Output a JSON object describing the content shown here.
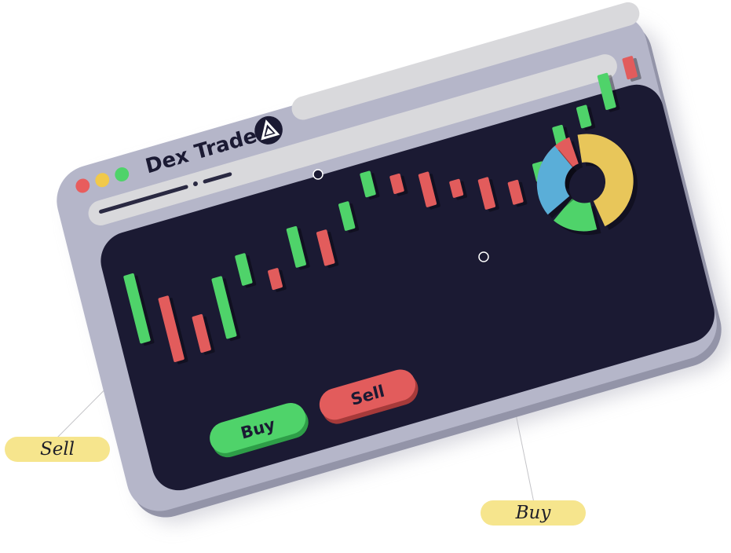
{
  "window": {
    "title": "Dex Trade",
    "logo_icon": "dex-trade-logo-icon",
    "controls": [
      {
        "name": "close",
        "color": "#e85d5d"
      },
      {
        "name": "minimize",
        "color": "#f1c94a"
      },
      {
        "name": "maximize",
        "color": "#4fd36a"
      }
    ]
  },
  "chart": {
    "type": "candlestick",
    "up_color": "#4fd36a",
    "down_color": "#e25c5c",
    "background": "#1b1a33"
  },
  "donut": {
    "segments": [
      {
        "color": "#e25c5c"
      },
      {
        "color": "#e8c65a"
      },
      {
        "color": "#4fd36a"
      },
      {
        "color": "#5aaed8"
      }
    ]
  },
  "buttons": {
    "buy_label": "Buy",
    "sell_label": "Sell",
    "buy_color": "#4fd36a",
    "sell_color": "#e25c5c"
  },
  "callouts": {
    "sell_label": "Sell",
    "buy_label": "Buy",
    "color": "#f6e58d"
  }
}
